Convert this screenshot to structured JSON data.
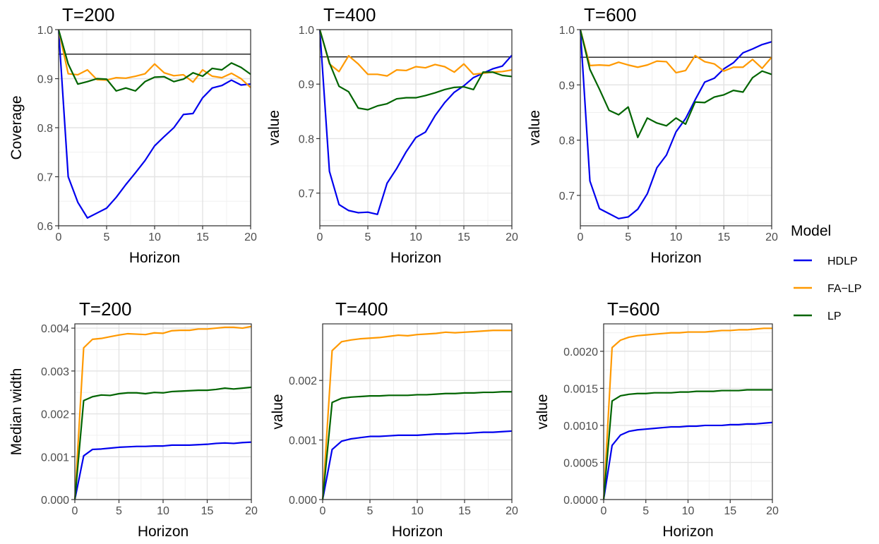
{
  "legend": {
    "title": "Model",
    "entries": [
      {
        "name": "HDLP",
        "color": "#0000ee"
      },
      {
        "name": "FA−LP",
        "color": "#ff9900"
      },
      {
        "name": "LP",
        "color": "#006400"
      }
    ]
  },
  "chart_data": [
    {
      "type": "line",
      "title": "T=200",
      "xlabel": "Horizon",
      "ylabel": "Coverage",
      "xlim": [
        0,
        20
      ],
      "ylim": [
        0.6,
        1.0
      ],
      "xticks": [
        0,
        5,
        10,
        15,
        20
      ],
      "yticks": [
        0.6,
        0.7,
        0.8,
        0.9,
        1.0
      ],
      "ytick_labels": [
        "0.6",
        "0.7",
        "0.8",
        "0.9",
        "1.0"
      ],
      "hline": 0.95,
      "x": [
        0,
        1,
        2,
        3,
        4,
        5,
        6,
        7,
        8,
        9,
        10,
        11,
        12,
        13,
        14,
        15,
        16,
        17,
        18,
        19,
        20
      ],
      "series": [
        {
          "name": "HDLP",
          "values": [
            1.0,
            0.7,
            0.648,
            0.616,
            0.626,
            0.636,
            0.658,
            0.684,
            0.708,
            0.733,
            0.763,
            0.782,
            0.8,
            0.827,
            0.829,
            0.861,
            0.881,
            0.886,
            0.897,
            0.887,
            0.889
          ]
        },
        {
          "name": "FA−LP",
          "values": [
            1.0,
            0.91,
            0.908,
            0.918,
            0.898,
            0.897,
            0.902,
            0.901,
            0.905,
            0.91,
            0.93,
            0.912,
            0.906,
            0.908,
            0.893,
            0.918,
            0.905,
            0.902,
            0.911,
            0.9,
            0.882
          ]
        },
        {
          "name": "LP",
          "values": [
            1.0,
            0.93,
            0.889,
            0.894,
            0.9,
            0.899,
            0.875,
            0.881,
            0.875,
            0.894,
            0.903,
            0.904,
            0.894,
            0.899,
            0.912,
            0.905,
            0.921,
            0.918,
            0.932,
            0.923,
            0.909
          ]
        }
      ]
    },
    {
      "type": "line",
      "title": "T=400",
      "xlabel": "Horizon",
      "ylabel": "value",
      "xlim": [
        0,
        20
      ],
      "ylim": [
        0.64,
        1.0
      ],
      "xticks": [
        0,
        5,
        10,
        15,
        20
      ],
      "yticks": [
        0.7,
        0.8,
        0.9,
        1.0
      ],
      "ytick_labels": [
        "0.7",
        "0.8",
        "0.9",
        "1.0"
      ],
      "hline": 0.95,
      "x": [
        0,
        1,
        2,
        3,
        4,
        5,
        6,
        7,
        8,
        9,
        10,
        11,
        12,
        13,
        14,
        15,
        16,
        17,
        18,
        19,
        20
      ],
      "series": [
        {
          "name": "HDLP",
          "values": [
            1.0,
            0.74,
            0.679,
            0.668,
            0.664,
            0.665,
            0.661,
            0.718,
            0.745,
            0.776,
            0.802,
            0.812,
            0.842,
            0.866,
            0.885,
            0.897,
            0.912,
            0.92,
            0.928,
            0.933,
            0.953
          ]
        },
        {
          "name": "FA−LP",
          "values": [
            1.0,
            0.937,
            0.923,
            0.952,
            0.937,
            0.918,
            0.918,
            0.915,
            0.926,
            0.925,
            0.932,
            0.93,
            0.936,
            0.932,
            0.922,
            0.937,
            0.918,
            0.92,
            0.922,
            0.923,
            0.926
          ]
        },
        {
          "name": "LP",
          "values": [
            1.0,
            0.939,
            0.896,
            0.886,
            0.856,
            0.853,
            0.86,
            0.864,
            0.873,
            0.875,
            0.875,
            0.879,
            0.884,
            0.89,
            0.894,
            0.895,
            0.89,
            0.922,
            0.922,
            0.916,
            0.914
          ]
        }
      ]
    },
    {
      "type": "line",
      "title": "T=600",
      "xlabel": "Horizon",
      "ylabel": "value",
      "xlim": [
        0,
        20
      ],
      "ylim": [
        0.645,
        1.0
      ],
      "xticks": [
        0,
        5,
        10,
        15,
        20
      ],
      "yticks": [
        0.7,
        0.8,
        0.9,
        1.0
      ],
      "ytick_labels": [
        "0.7",
        "0.8",
        "0.9",
        "1.0"
      ],
      "hline": 0.95,
      "x": [
        0,
        1,
        2,
        3,
        4,
        5,
        6,
        7,
        8,
        9,
        10,
        11,
        12,
        13,
        14,
        15,
        16,
        17,
        18,
        19,
        20
      ],
      "series": [
        {
          "name": "HDLP",
          "values": [
            1.0,
            0.726,
            0.676,
            0.667,
            0.658,
            0.661,
            0.675,
            0.703,
            0.75,
            0.773,
            0.815,
            0.839,
            0.873,
            0.905,
            0.912,
            0.929,
            0.94,
            0.958,
            0.965,
            0.973,
            0.978
          ]
        },
        {
          "name": "FA−LP",
          "values": [
            1.0,
            0.935,
            0.936,
            0.935,
            0.941,
            0.936,
            0.932,
            0.936,
            0.943,
            0.942,
            0.922,
            0.926,
            0.953,
            0.942,
            0.938,
            0.925,
            0.932,
            0.932,
            0.946,
            0.93,
            0.95
          ]
        },
        {
          "name": "LP",
          "values": [
            1.0,
            0.928,
            0.892,
            0.854,
            0.846,
            0.86,
            0.805,
            0.84,
            0.831,
            0.826,
            0.84,
            0.829,
            0.869,
            0.868,
            0.878,
            0.882,
            0.89,
            0.887,
            0.913,
            0.925,
            0.919
          ]
        }
      ]
    },
    {
      "type": "line",
      "title": "T=200",
      "xlabel": "Horizon",
      "ylabel": "Median width",
      "xlim": [
        0,
        20
      ],
      "ylim": [
        0,
        0.0041
      ],
      "xticks": [
        0,
        5,
        10,
        15,
        20
      ],
      "yticks": [
        0,
        0.001,
        0.002,
        0.003,
        0.004
      ],
      "ytick_labels": [
        "0.000",
        "0.001",
        "0.002",
        "0.003",
        "0.004"
      ],
      "x": [
        0,
        1,
        2,
        3,
        4,
        5,
        6,
        7,
        8,
        9,
        10,
        11,
        12,
        13,
        14,
        15,
        16,
        17,
        18,
        19,
        20
      ],
      "series": [
        {
          "name": "HDLP",
          "values": [
            0.0,
            0.00102,
            0.00117,
            0.00118,
            0.0012,
            0.00122,
            0.00123,
            0.00124,
            0.00124,
            0.00125,
            0.00125,
            0.00127,
            0.00127,
            0.00127,
            0.00128,
            0.00129,
            0.00131,
            0.00132,
            0.00131,
            0.00133,
            0.00134
          ]
        },
        {
          "name": "FA−LP",
          "values": [
            0.0,
            0.00354,
            0.00374,
            0.00376,
            0.0038,
            0.00384,
            0.00387,
            0.00386,
            0.00385,
            0.00389,
            0.00388,
            0.00394,
            0.00395,
            0.00395,
            0.00398,
            0.00398,
            0.004,
            0.00402,
            0.00402,
            0.004,
            0.00404
          ]
        },
        {
          "name": "LP",
          "values": [
            0.0,
            0.00231,
            0.0024,
            0.00244,
            0.00243,
            0.00247,
            0.00249,
            0.00249,
            0.00247,
            0.0025,
            0.00249,
            0.00252,
            0.00253,
            0.00254,
            0.00255,
            0.00255,
            0.00257,
            0.0026,
            0.00258,
            0.0026,
            0.00262
          ]
        }
      ]
    },
    {
      "type": "line",
      "title": "T=400",
      "xlabel": "Horizon",
      "ylabel": "value",
      "xlim": [
        0,
        20
      ],
      "ylim": [
        0,
        0.00295
      ],
      "xticks": [
        0,
        5,
        10,
        15,
        20
      ],
      "yticks": [
        0,
        0.001,
        0.002
      ],
      "ytick_labels": [
        "0.000",
        "0.001",
        "0.002"
      ],
      "x": [
        0,
        1,
        2,
        3,
        4,
        5,
        6,
        7,
        8,
        9,
        10,
        11,
        12,
        13,
        14,
        15,
        16,
        17,
        18,
        19,
        20
      ],
      "series": [
        {
          "name": "HDLP",
          "values": [
            0.0,
            0.00084,
            0.00098,
            0.00102,
            0.00104,
            0.00106,
            0.00106,
            0.00107,
            0.00108,
            0.00108,
            0.00108,
            0.00109,
            0.0011,
            0.0011,
            0.00111,
            0.00111,
            0.00112,
            0.00113,
            0.00113,
            0.00114,
            0.00115
          ]
        },
        {
          "name": "FA−LP",
          "values": [
            0.0,
            0.0025,
            0.00265,
            0.00268,
            0.0027,
            0.00271,
            0.00272,
            0.00274,
            0.00276,
            0.00275,
            0.00277,
            0.00278,
            0.00279,
            0.00281,
            0.0028,
            0.00281,
            0.00282,
            0.00283,
            0.00284,
            0.00284,
            0.00284
          ]
        },
        {
          "name": "LP",
          "values": [
            0.0,
            0.00163,
            0.0017,
            0.00172,
            0.00173,
            0.00174,
            0.00174,
            0.00175,
            0.00175,
            0.00175,
            0.00176,
            0.00176,
            0.00177,
            0.00178,
            0.00178,
            0.00179,
            0.00179,
            0.0018,
            0.0018,
            0.00181,
            0.00181
          ]
        }
      ]
    },
    {
      "type": "line",
      "title": "T=600",
      "xlabel": "Horizon",
      "ylabel": "value",
      "xlim": [
        0,
        20
      ],
      "ylim": [
        0,
        0.00237
      ],
      "xticks": [
        0,
        5,
        10,
        15,
        20
      ],
      "yticks": [
        0,
        0.0005,
        0.001,
        0.0015,
        0.002
      ],
      "ytick_labels": [
        "0.0000",
        "0.0005",
        "0.0010",
        "0.0015",
        "0.0020"
      ],
      "x": [
        0,
        1,
        2,
        3,
        4,
        5,
        6,
        7,
        8,
        9,
        10,
        11,
        12,
        13,
        14,
        15,
        16,
        17,
        18,
        19,
        20
      ],
      "series": [
        {
          "name": "HDLP",
          "values": [
            0.0,
            0.00073,
            0.00087,
            0.00092,
            0.00094,
            0.00095,
            0.00096,
            0.00097,
            0.00098,
            0.00098,
            0.00099,
            0.00099,
            0.001,
            0.001,
            0.001,
            0.00101,
            0.00101,
            0.00102,
            0.00102,
            0.00103,
            0.00104
          ]
        },
        {
          "name": "FA−LP",
          "values": [
            0.0,
            0.00205,
            0.00215,
            0.00219,
            0.00221,
            0.00222,
            0.00223,
            0.00224,
            0.00225,
            0.00225,
            0.00226,
            0.00226,
            0.00226,
            0.00227,
            0.00228,
            0.00228,
            0.00229,
            0.00229,
            0.0023,
            0.00231,
            0.00231
          ]
        },
        {
          "name": "LP",
          "values": [
            0.0,
            0.00133,
            0.0014,
            0.00142,
            0.00143,
            0.00143,
            0.00144,
            0.00144,
            0.00144,
            0.00145,
            0.00145,
            0.00146,
            0.00146,
            0.00146,
            0.00147,
            0.00147,
            0.00147,
            0.00148,
            0.00148,
            0.00148,
            0.00148
          ]
        }
      ]
    }
  ]
}
